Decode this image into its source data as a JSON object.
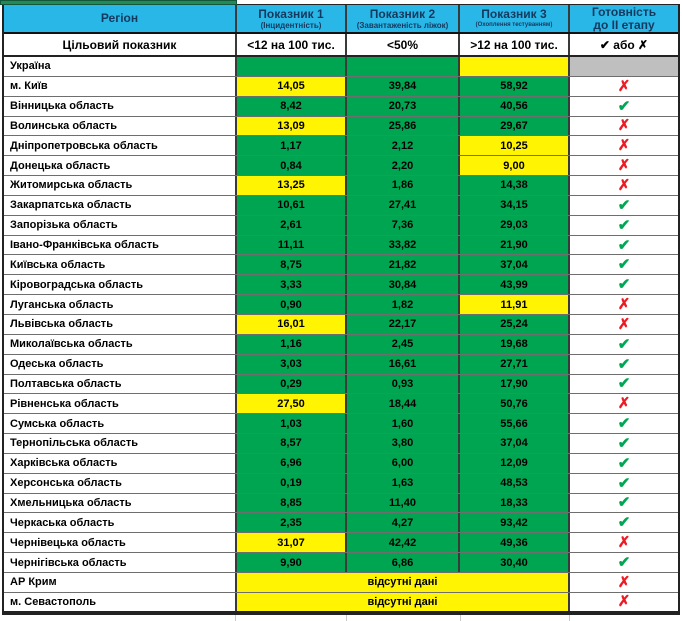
{
  "colors": {
    "header_bg": "#29B7E8",
    "indicator_green": "#00A551",
    "indicator_yellow": "#FFF401",
    "no_data_gray": "#BFBFBF",
    "check_green": "#00A651",
    "cross_red": "#EC1C24",
    "top_strip_green": "#1F8B57"
  },
  "symbols": {
    "check": "✔",
    "cross": "✗"
  },
  "header": {
    "columns": [
      {
        "label": "Регіон",
        "sub": ""
      },
      {
        "label": "Показник 1",
        "sub": "(Інцидентність)"
      },
      {
        "label": "Показник 2",
        "sub": "(Завантаженість ліжок)"
      },
      {
        "label": "Показник 3",
        "sub": "(Охоплення тестуванням)"
      },
      {
        "label": "Готовність",
        "sub": "до ІІ етапу"
      }
    ]
  },
  "target_row": {
    "label": "Цільовий показник",
    "p1": "<12 на 100 тис.",
    "p2": "<50%",
    "p3": ">12 на 100 тис.",
    "ready": "✔ або ✗"
  },
  "rows": [
    {
      "name": "Україна",
      "cells": [
        {
          "text": "",
          "bg": "green"
        },
        {
          "text": "",
          "bg": "green"
        },
        {
          "text": "",
          "bg": "yellow"
        }
      ],
      "ready": "none",
      "ready_bg": "gray"
    },
    {
      "name": "м. Київ",
      "cells": [
        {
          "text": "14,05",
          "bg": "yellow"
        },
        {
          "text": "39,84",
          "bg": "green"
        },
        {
          "text": "58,92",
          "bg": "green"
        }
      ],
      "ready": "cross"
    },
    {
      "name": "Вінницька область",
      "cells": [
        {
          "text": "8,42",
          "bg": "green"
        },
        {
          "text": "20,73",
          "bg": "green"
        },
        {
          "text": "40,56",
          "bg": "green"
        }
      ],
      "ready": "check"
    },
    {
      "name": "Волинська область",
      "cells": [
        {
          "text": "13,09",
          "bg": "yellow"
        },
        {
          "text": "25,86",
          "bg": "green"
        },
        {
          "text": "29,67",
          "bg": "green"
        }
      ],
      "ready": "cross"
    },
    {
      "name": "Дніпропетровська область",
      "cells": [
        {
          "text": "1,17",
          "bg": "green"
        },
        {
          "text": "2,12",
          "bg": "green"
        },
        {
          "text": "10,25",
          "bg": "yellow"
        }
      ],
      "ready": "cross"
    },
    {
      "name": "Донецька область",
      "cells": [
        {
          "text": "0,84",
          "bg": "green"
        },
        {
          "text": "2,20",
          "bg": "green"
        },
        {
          "text": "9,00",
          "bg": "yellow"
        }
      ],
      "ready": "cross"
    },
    {
      "name": "Житомирська область",
      "cells": [
        {
          "text": "13,25",
          "bg": "yellow"
        },
        {
          "text": "1,86",
          "bg": "green"
        },
        {
          "text": "14,38",
          "bg": "green"
        }
      ],
      "ready": "cross"
    },
    {
      "name": "Закарпатська область",
      "cells": [
        {
          "text": "10,61",
          "bg": "green"
        },
        {
          "text": "27,41",
          "bg": "green"
        },
        {
          "text": "34,15",
          "bg": "green"
        }
      ],
      "ready": "check"
    },
    {
      "name": "Запорізька область",
      "cells": [
        {
          "text": "2,61",
          "bg": "green"
        },
        {
          "text": "7,36",
          "bg": "green"
        },
        {
          "text": "29,03",
          "bg": "green"
        }
      ],
      "ready": "check"
    },
    {
      "name": "Івано-Франківська область",
      "cells": [
        {
          "text": "11,11",
          "bg": "green"
        },
        {
          "text": "33,82",
          "bg": "green"
        },
        {
          "text": "21,90",
          "bg": "green"
        }
      ],
      "ready": "check"
    },
    {
      "name": "Київська область",
      "cells": [
        {
          "text": "8,75",
          "bg": "green"
        },
        {
          "text": "21,82",
          "bg": "green"
        },
        {
          "text": "37,04",
          "bg": "green"
        }
      ],
      "ready": "check"
    },
    {
      "name": "Кіровоградська область",
      "cells": [
        {
          "text": "3,33",
          "bg": "green"
        },
        {
          "text": "30,84",
          "bg": "green"
        },
        {
          "text": "43,99",
          "bg": "green"
        }
      ],
      "ready": "check"
    },
    {
      "name": "Луганська область",
      "cells": [
        {
          "text": "0,90",
          "bg": "green"
        },
        {
          "text": "1,82",
          "bg": "green"
        },
        {
          "text": "11,91",
          "bg": "yellow"
        }
      ],
      "ready": "cross"
    },
    {
      "name": "Львівська область",
      "cells": [
        {
          "text": "16,01",
          "bg": "yellow"
        },
        {
          "text": "22,17",
          "bg": "green"
        },
        {
          "text": "25,24",
          "bg": "green"
        }
      ],
      "ready": "cross"
    },
    {
      "name": "Миколаївська область",
      "cells": [
        {
          "text": "1,16",
          "bg": "green"
        },
        {
          "text": "2,45",
          "bg": "green"
        },
        {
          "text": "19,68",
          "bg": "green"
        }
      ],
      "ready": "check"
    },
    {
      "name": "Одеська область",
      "cells": [
        {
          "text": "3,03",
          "bg": "green"
        },
        {
          "text": "16,61",
          "bg": "green"
        },
        {
          "text": "27,71",
          "bg": "green"
        }
      ],
      "ready": "check"
    },
    {
      "name": "Полтавська область",
      "cells": [
        {
          "text": "0,29",
          "bg": "green"
        },
        {
          "text": "0,93",
          "bg": "green"
        },
        {
          "text": "17,90",
          "bg": "green"
        }
      ],
      "ready": "check"
    },
    {
      "name": "Рівненська область",
      "cells": [
        {
          "text": "27,50",
          "bg": "yellow"
        },
        {
          "text": "18,44",
          "bg": "green"
        },
        {
          "text": "50,76",
          "bg": "green"
        }
      ],
      "ready": "cross"
    },
    {
      "name": "Сумська область",
      "cells": [
        {
          "text": "1,03",
          "bg": "green"
        },
        {
          "text": "1,60",
          "bg": "green"
        },
        {
          "text": "55,66",
          "bg": "green"
        }
      ],
      "ready": "check"
    },
    {
      "name": "Тернопільська область",
      "cells": [
        {
          "text": "8,57",
          "bg": "green"
        },
        {
          "text": "3,80",
          "bg": "green"
        },
        {
          "text": "37,04",
          "bg": "green"
        }
      ],
      "ready": "check"
    },
    {
      "name": "Харківська область",
      "cells": [
        {
          "text": "6,96",
          "bg": "green"
        },
        {
          "text": "6,00",
          "bg": "green"
        },
        {
          "text": "12,09",
          "bg": "green"
        }
      ],
      "ready": "check"
    },
    {
      "name": "Херсонська область",
      "cells": [
        {
          "text": "0,19",
          "bg": "green"
        },
        {
          "text": "1,63",
          "bg": "green"
        },
        {
          "text": "48,53",
          "bg": "green"
        }
      ],
      "ready": "check"
    },
    {
      "name": "Хмельницька область",
      "cells": [
        {
          "text": "8,85",
          "bg": "green"
        },
        {
          "text": "11,40",
          "bg": "green"
        },
        {
          "text": "18,33",
          "bg": "green"
        }
      ],
      "ready": "check"
    },
    {
      "name": "Черкаська область",
      "cells": [
        {
          "text": "2,35",
          "bg": "green"
        },
        {
          "text": "4,27",
          "bg": "green"
        },
        {
          "text": "93,42",
          "bg": "green"
        }
      ],
      "ready": "check"
    },
    {
      "name": "Чернівецька область",
      "cells": [
        {
          "text": "31,07",
          "bg": "yellow"
        },
        {
          "text": "42,42",
          "bg": "green"
        },
        {
          "text": "49,36",
          "bg": "green"
        }
      ],
      "ready": "cross"
    },
    {
      "name": "Чернігівська область",
      "cells": [
        {
          "text": "9,90",
          "bg": "green"
        },
        {
          "text": "6,86",
          "bg": "green"
        },
        {
          "text": "30,40",
          "bg": "green"
        }
      ],
      "ready": "check"
    },
    {
      "name": "АР Крим",
      "merged": true,
      "merged_label": "відсутні дані",
      "ready": "cross"
    },
    {
      "name": "м. Севастополь",
      "merged": true,
      "merged_label": "відсутні дані",
      "ready": "cross"
    }
  ]
}
